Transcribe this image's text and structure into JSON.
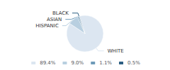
{
  "chart_data": {
    "type": "pie",
    "categories": [
      "WHITE",
      "HISPANIC",
      "ASIAN",
      "BLACK"
    ],
    "values": [
      89.4,
      9.0,
      1.1,
      0.5
    ],
    "value_labels": [
      "89.4%",
      "9.0%",
      "1.1%",
      "0.5%"
    ],
    "colors": [
      "#dce6f1",
      "#b8cfe0",
      "#6e9ab8",
      "#2d5f82"
    ],
    "legend": "bottom"
  }
}
